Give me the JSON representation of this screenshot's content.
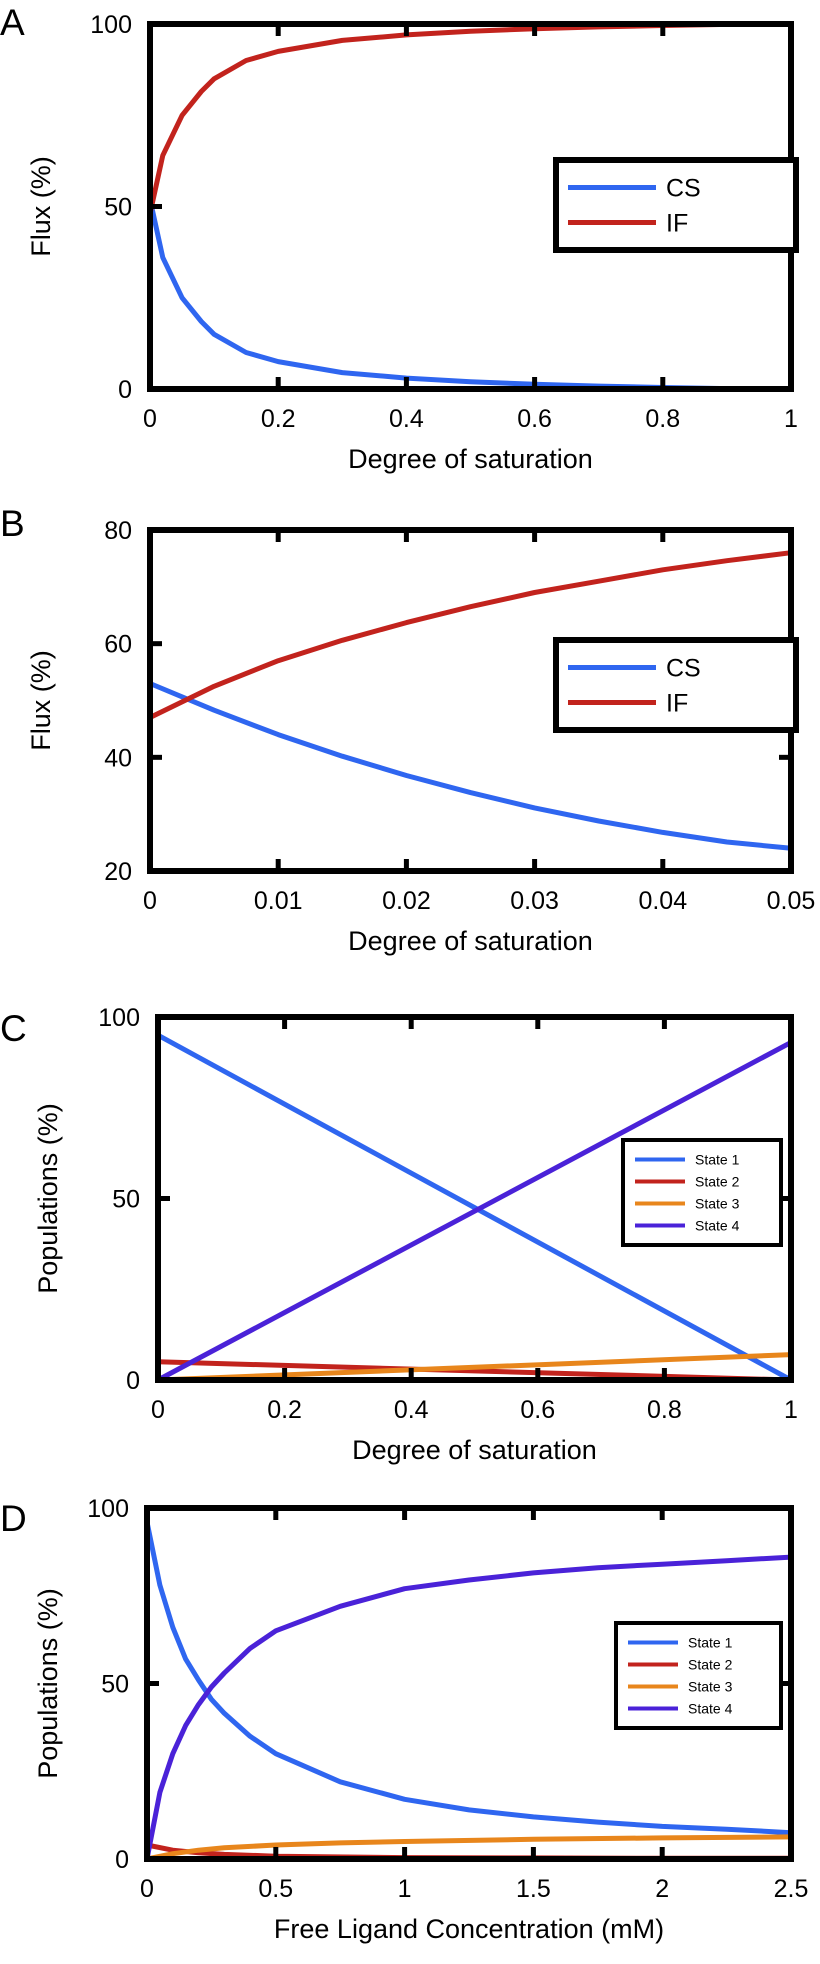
{
  "chart_data": [
    {
      "panel": "A",
      "type": "line",
      "xlabel": "Degree of saturation",
      "ylabel": "Flux (%)",
      "xlim": [
        0,
        1
      ],
      "ylim": [
        0,
        100
      ],
      "xticks": [
        "0",
        "0.2",
        "0.4",
        "0.6",
        "0.8",
        "1"
      ],
      "yticks": [
        "0",
        "50",
        "100"
      ],
      "legend_position": "right",
      "series": [
        {
          "name": "CS",
          "color": "#2f66f0",
          "x": [
            0,
            0.02,
            0.05,
            0.08,
            0.1,
            0.15,
            0.2,
            0.3,
            0.4,
            0.5,
            0.6,
            0.7,
            0.8,
            0.9
          ],
          "y": [
            52,
            36,
            25,
            18.5,
            15,
            10,
            7.5,
            4.5,
            3,
            2,
            1.3,
            0.8,
            0.4,
            0.1
          ]
        },
        {
          "name": "IF",
          "color": "#c2231d",
          "x": [
            0,
            0.02,
            0.05,
            0.08,
            0.1,
            0.15,
            0.2,
            0.3,
            0.4,
            0.5,
            0.6,
            0.7,
            0.8,
            0.9
          ],
          "y": [
            48,
            64,
            75,
            81.5,
            85,
            90,
            92.5,
            95.5,
            97,
            98,
            98.7,
            99.2,
            99.6,
            99.9
          ]
        }
      ]
    },
    {
      "panel": "B",
      "type": "line",
      "xlabel": "Degree of saturation",
      "ylabel": "Flux (%)",
      "xlim": [
        0,
        0.05
      ],
      "ylim": [
        20,
        80
      ],
      "xticks": [
        "0",
        "0.01",
        "0.02",
        "0.03",
        "0.04",
        "0.05"
      ],
      "yticks": [
        "20",
        "40",
        "60",
        "80"
      ],
      "legend_position": "right",
      "series": [
        {
          "name": "CS",
          "color": "#2f66f0",
          "x": [
            0,
            0.005,
            0.01,
            0.015,
            0.02,
            0.025,
            0.03,
            0.035,
            0.04,
            0.045,
            0.05
          ],
          "y": [
            53,
            48.3,
            44,
            40.2,
            36.8,
            33.8,
            31.1,
            28.8,
            26.8,
            25.1,
            24
          ]
        },
        {
          "name": "IF",
          "color": "#c2231d",
          "x": [
            0,
            0.005,
            0.01,
            0.015,
            0.02,
            0.025,
            0.03,
            0.035,
            0.04,
            0.045,
            0.05
          ],
          "y": [
            47,
            52.5,
            57,
            60.6,
            63.7,
            66.5,
            69,
            71,
            73,
            74.6,
            76
          ]
        }
      ]
    },
    {
      "panel": "C",
      "type": "line",
      "xlabel": "Degree of saturation",
      "ylabel": "Populations (%)",
      "xlim": [
        0,
        1
      ],
      "ylim": [
        0,
        100
      ],
      "xticks": [
        "0",
        "0.2",
        "0.4",
        "0.6",
        "0.8",
        "1"
      ],
      "yticks": [
        "0",
        "50",
        "100"
      ],
      "legend_position": "right",
      "series": [
        {
          "name": "State 1",
          "color": "#2f66f0",
          "x": [
            0,
            1
          ],
          "y": [
            95,
            0
          ]
        },
        {
          "name": "State 2",
          "color": "#c2231d",
          "x": [
            0,
            1
          ],
          "y": [
            5,
            0
          ]
        },
        {
          "name": "State 3",
          "color": "#e8861c",
          "x": [
            0,
            1
          ],
          "y": [
            0,
            7
          ]
        },
        {
          "name": "State 4",
          "color": "#4a22d8",
          "x": [
            0,
            1
          ],
          "y": [
            0,
            93
          ]
        }
      ]
    },
    {
      "panel": "D",
      "type": "line",
      "xlabel": "Free Ligand Concentration (mM)",
      "ylabel": "Populations (%)",
      "xlim": [
        0,
        2.5
      ],
      "ylim": [
        0,
        100
      ],
      "xticks": [
        "0",
        "0.5",
        "1",
        "1.5",
        "2",
        "2.5"
      ],
      "yticks": [
        "0",
        "50",
        "100"
      ],
      "legend_position": "right",
      "series": [
        {
          "name": "State 1",
          "color": "#2f66f0",
          "x": [
            0,
            0.05,
            0.1,
            0.15,
            0.2,
            0.25,
            0.3,
            0.4,
            0.5,
            0.75,
            1,
            1.25,
            1.5,
            1.75,
            2,
            2.25,
            2.5
          ],
          "y": [
            96,
            78,
            66,
            57,
            51,
            45.5,
            41.5,
            35,
            30,
            22,
            17,
            14,
            12,
            10.5,
            9.3,
            8.5,
            7.5
          ]
        },
        {
          "name": "State 2",
          "color": "#c2231d",
          "x": [
            0,
            0.1,
            0.2,
            0.3,
            0.5,
            1,
            1.5,
            2,
            2.5
          ],
          "y": [
            4,
            2.5,
            1.8,
            1.3,
            0.8,
            0.4,
            0.3,
            0.2,
            0.2
          ]
        },
        {
          "name": "State 3",
          "color": "#e8861c",
          "x": [
            0,
            0.1,
            0.2,
            0.3,
            0.5,
            0.75,
            1,
            1.5,
            2,
            2.5
          ],
          "y": [
            0,
            1.5,
            2.5,
            3.2,
            4,
            4.6,
            5,
            5.6,
            6,
            6.3
          ]
        },
        {
          "name": "State 4",
          "color": "#4a22d8",
          "x": [
            0,
            0.05,
            0.1,
            0.15,
            0.2,
            0.25,
            0.3,
            0.4,
            0.5,
            0.75,
            1,
            1.25,
            1.5,
            1.75,
            2,
            2.25,
            2.5
          ],
          "y": [
            0,
            19,
            30,
            38,
            44,
            49,
            53,
            60,
            65,
            72,
            77,
            79.5,
            81.5,
            83,
            84,
            85,
            86
          ]
        }
      ]
    }
  ]
}
